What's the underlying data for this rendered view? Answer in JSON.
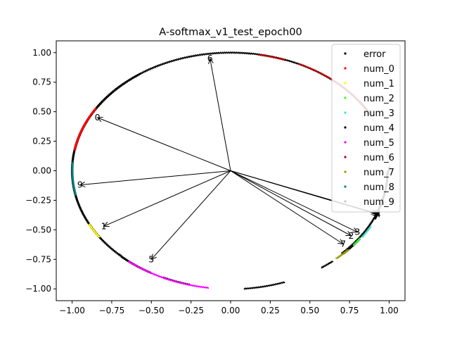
{
  "chart_data": {
    "type": "scatter",
    "title": "A-softmax_v1_test_epoch00",
    "xlabel": "",
    "ylabel": "",
    "xlim": [
      -1.1,
      1.1
    ],
    "ylim": [
      -1.1,
      1.1
    ],
    "xticks": [
      -1.0,
      -0.75,
      -0.5,
      -0.25,
      0.0,
      0.25,
      0.5,
      0.75,
      1.0
    ],
    "yticks": [
      -1.0,
      -0.75,
      -0.5,
      -0.25,
      0.0,
      0.25,
      0.5,
      0.75,
      1.0
    ],
    "xtick_labels": [
      "−1.00",
      "−0.75",
      "−0.50",
      "−0.25",
      "0.00",
      "0.25",
      "0.50",
      "0.75",
      "1.00"
    ],
    "ytick_labels": [
      "−1.00",
      "−0.75",
      "−0.50",
      "−0.25",
      "0.00",
      "0.25",
      "0.50",
      "0.75",
      "1.00"
    ],
    "grid": false,
    "legend_position": "top-right",
    "series": [
      {
        "name": "error",
        "color": "#000000",
        "arcs": [
          [
            -45,
            240
          ],
          [
            125,
            170
          ],
          [
            225,
            235
          ],
          [
            245,
            255
          ],
          [
            275,
            290
          ],
          [
            305,
            310
          ],
          [
            315,
            325
          ]
        ]
      },
      {
        "name": "num_0",
        "color": "#ff0000",
        "arcs": [
          [
            148,
            170
          ]
        ]
      },
      {
        "name": "num_1",
        "color": "#ffff00",
        "arcs": [
          [
            207,
            214
          ]
        ]
      },
      {
        "name": "num_2",
        "color": "#33ff33",
        "arcs": [
          [
            321,
            325
          ]
        ]
      },
      {
        "name": "num_3",
        "color": "#40e0d0",
        "arcs": [
          [
            326,
            332
          ]
        ]
      },
      {
        "name": "num_4",
        "color": "#000000",
        "arcs": [
          [
            336,
            340
          ]
        ]
      },
      {
        "name": "num_5",
        "color": "#ff00ff",
        "arcs": [
          [
            230,
            262
          ]
        ]
      },
      {
        "name": "num_6",
        "color": "#b30000",
        "arcs": [
          [
            30,
            65
          ],
          [
            70,
            80
          ]
        ]
      },
      {
        "name": "num_7",
        "color": "#999900",
        "arcs": [
          [
            312,
            318
          ]
        ]
      },
      {
        "name": "num_8",
        "color": "#008080",
        "arcs": [
          [
            176,
            192
          ]
        ]
      },
      {
        "name": "num_9",
        "color": "#c8c8c8",
        "arcs": [
          [
            2,
            28
          ]
        ]
      }
    ],
    "vectors": [
      {
        "label": "6",
        "x": -0.13,
        "y": 0.95
      },
      {
        "label": "0",
        "x": -0.84,
        "y": 0.45
      },
      {
        "label": "9",
        "x": -0.95,
        "y": -0.12
      },
      {
        "label": "1",
        "x": -0.8,
        "y": -0.47
      },
      {
        "label": "5",
        "x": -0.5,
        "y": -0.75
      },
      {
        "label": "2",
        "x": 0.76,
        "y": -0.55
      },
      {
        "label": "3",
        "x": 0.8,
        "y": -0.52
      },
      {
        "label": "7",
        "x": 0.71,
        "y": -0.62
      },
      {
        "label": "8",
        "x": 0.92,
        "y": -0.36
      },
      {
        "label": "4",
        "x": 0.93,
        "y": -0.37
      }
    ]
  }
}
